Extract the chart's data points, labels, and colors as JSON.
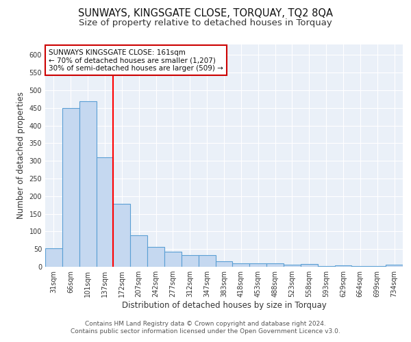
{
  "title": "SUNWAYS, KINGSGATE CLOSE, TORQUAY, TQ2 8QA",
  "subtitle": "Size of property relative to detached houses in Torquay",
  "xlabel": "Distribution of detached houses by size in Torquay",
  "ylabel": "Number of detached properties",
  "categories": [
    "31sqm",
    "66sqm",
    "101sqm",
    "137sqm",
    "172sqm",
    "207sqm",
    "242sqm",
    "277sqm",
    "312sqm",
    "347sqm",
    "383sqm",
    "418sqm",
    "453sqm",
    "488sqm",
    "523sqm",
    "558sqm",
    "593sqm",
    "629sqm",
    "664sqm",
    "699sqm",
    "734sqm"
  ],
  "values": [
    53,
    450,
    470,
    311,
    178,
    89,
    57,
    43,
    33,
    33,
    15,
    9,
    9,
    9,
    5,
    8,
    1,
    4,
    1,
    1,
    5
  ],
  "bar_color": "#c5d8f0",
  "bar_edge_color": "#5a9fd4",
  "annotation_text": "SUNWAYS KINGSGATE CLOSE: 161sqm\n← 70% of detached houses are smaller (1,207)\n30% of semi-detached houses are larger (509) →",
  "annotation_box_color": "#ffffff",
  "annotation_box_edge": "#cc0000",
  "ylim": [
    0,
    630
  ],
  "yticks": [
    0,
    50,
    100,
    150,
    200,
    250,
    300,
    350,
    400,
    450,
    500,
    550,
    600
  ],
  "footer1": "Contains HM Land Registry data © Crown copyright and database right 2024.",
  "footer2": "Contains public sector information licensed under the Open Government Licence v3.0.",
  "plot_bg_color": "#eaf0f8",
  "title_fontsize": 10.5,
  "subtitle_fontsize": 9.5,
  "axis_label_fontsize": 8.5,
  "tick_fontsize": 7,
  "annotation_fontsize": 7.5,
  "footer_fontsize": 6.5
}
